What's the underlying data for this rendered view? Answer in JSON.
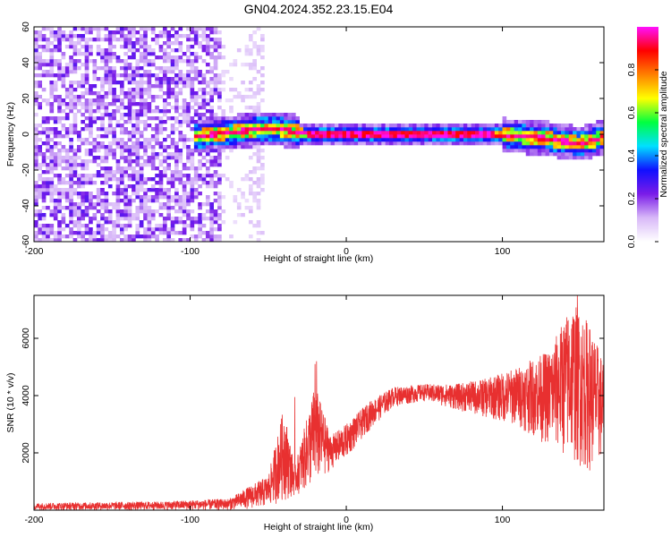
{
  "title": "GN04.2024.352.23.15.E04",
  "chart_data": [
    {
      "type": "heatmap",
      "title": "GN04.2024.352.23.15.E04",
      "xlabel": "Height of straight line (km)",
      "ylabel": "Frequency (Hz)",
      "xlim": [
        -200,
        165
      ],
      "ylim": [
        -60,
        60
      ],
      "x_ticks": [
        "-200",
        "-100",
        "0",
        "100"
      ],
      "y_ticks": [
        "-60",
        "-40",
        "-20",
        "0",
        "20",
        "40",
        "60"
      ],
      "colorbar": {
        "label": "Normalized spectral amplitude",
        "range": [
          0,
          1
        ],
        "ticks": [
          "0.0",
          "0.2",
          "0.4",
          "0.6",
          "0.8"
        ],
        "colormap": [
          "#ffffff",
          "#d8b8f8",
          "#7a1ce8",
          "#1010ff",
          "#00e0ff",
          "#00ff40",
          "#ffff00",
          "#ff8000",
          "#ff0000",
          "#ff10ff"
        ]
      },
      "noise_region": {
        "x_range": [
          -200,
          -80
        ],
        "level": 0.15
      },
      "band_center_hz": [
        [
          -95,
          -1
        ],
        [
          -85,
          0
        ],
        [
          -75,
          1
        ],
        [
          -65,
          2
        ],
        [
          -55,
          3
        ],
        [
          -45,
          3
        ],
        [
          -35,
          2
        ],
        [
          -25,
          0
        ],
        [
          0,
          0
        ],
        [
          50,
          0
        ],
        [
          90,
          0
        ],
        [
          110,
          -1
        ],
        [
          125,
          -2
        ],
        [
          140,
          -4
        ],
        [
          150,
          -5
        ],
        [
          160,
          -3
        ],
        [
          165,
          -1
        ]
      ]
    },
    {
      "type": "line",
      "xlabel": "Height of straight line (km)",
      "ylabel": "SNR (10 * v/v)",
      "xlim": [
        -200,
        165
      ],
      "ylim": [
        0,
        7500
      ],
      "x_ticks": [
        "-200",
        "-100",
        "0",
        "100"
      ],
      "y_ticks": [
        "2000",
        "4000",
        "6000"
      ],
      "color": "#e83030",
      "envelope": [
        {
          "x": -200,
          "low": 0,
          "high": 250
        },
        {
          "x": -120,
          "low": 0,
          "high": 300
        },
        {
          "x": -75,
          "low": 0,
          "high": 400
        },
        {
          "x": -60,
          "low": 50,
          "high": 900
        },
        {
          "x": -50,
          "low": 100,
          "high": 1200
        },
        {
          "x": -40,
          "low": 300,
          "high": 3600
        },
        {
          "x": -33,
          "low": 500,
          "high": 1500
        },
        {
          "x": -20,
          "low": 800,
          "high": 4400
        },
        {
          "x": -10,
          "low": 1400,
          "high": 2600
        },
        {
          "x": 0,
          "low": 1800,
          "high": 3000
        },
        {
          "x": 15,
          "low": 2800,
          "high": 3800
        },
        {
          "x": 30,
          "low": 3600,
          "high": 4300
        },
        {
          "x": 50,
          "low": 3800,
          "high": 4400
        },
        {
          "x": 70,
          "low": 3500,
          "high": 4400
        },
        {
          "x": 90,
          "low": 3200,
          "high": 4600
        },
        {
          "x": 110,
          "low": 2900,
          "high": 5000
        },
        {
          "x": 130,
          "low": 2200,
          "high": 5600
        },
        {
          "x": 145,
          "low": 1600,
          "high": 7300
        },
        {
          "x": 155,
          "low": 1300,
          "high": 6600
        },
        {
          "x": 165,
          "low": 1700,
          "high": 5200
        }
      ],
      "spikes": [
        {
          "x": -33,
          "value": 3950
        },
        {
          "x": -19,
          "value": 5200
        },
        {
          "x": -20,
          "value": 5100
        },
        {
          "x": 148,
          "value": 7550
        }
      ]
    }
  ]
}
